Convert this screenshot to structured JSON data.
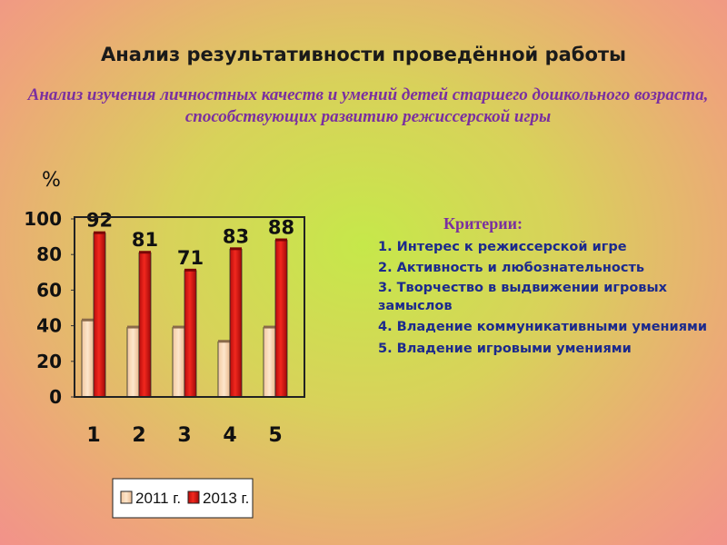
{
  "title": "Анализ результативности проведённой работы",
  "subtitle": "Анализ изучения личностных качеств и умений детей старшего дошкольного возраста, способствующих развитию режиссерской игры",
  "criteria": {
    "heading": "Критерии:",
    "items": [
      "1. Интерес к режиссерской игре",
      "2. Активность и любознательность",
      "3. Творчество в выдвижении игровых замыслов",
      "4. Владение коммуникативными умениями",
      "5.  Владение игровыми умениями"
    ]
  },
  "chart_data": {
    "type": "bar",
    "categories": [
      "1",
      "2",
      "3",
      "4",
      "5"
    ],
    "series": [
      {
        "name": "2011 г.",
        "values": [
          43,
          39,
          39,
          31,
          39
        ],
        "color": "#fce0c4"
      },
      {
        "name": "2013 г.",
        "values": [
          92,
          81,
          71,
          83,
          88
        ],
        "color": "#e31a14"
      }
    ],
    "data_labels": [
      "92",
      "81",
      "71",
      "83",
      "88"
    ],
    "ylabel": "%",
    "ylim": [
      0,
      100
    ],
    "yticks": [
      0,
      20,
      40,
      60,
      80,
      100
    ],
    "grid": false,
    "legend_position": "bottom"
  }
}
